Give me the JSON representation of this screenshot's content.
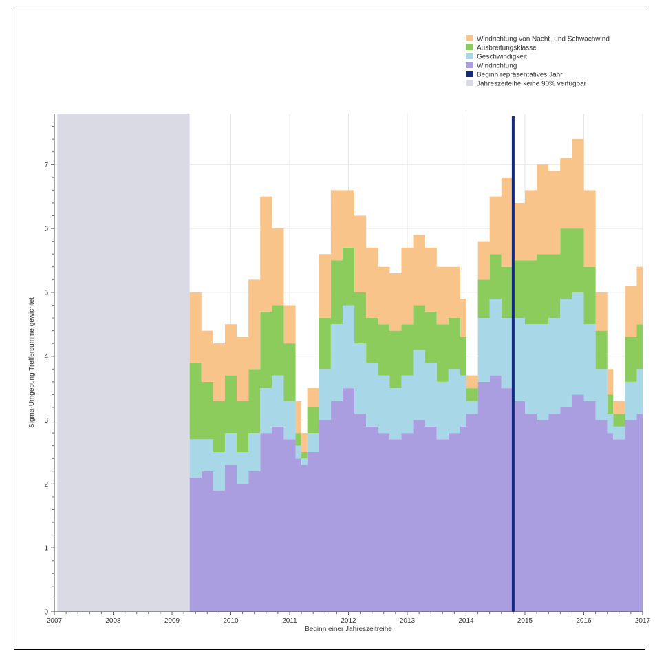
{
  "chart_data": {
    "type": "area",
    "stacked": true,
    "xlabel": "Beginn einer Jahreszeitreihe",
    "ylabel": "Sigma-Umgebung Treffersumme gewichtet",
    "xlim": [
      2007,
      2017
    ],
    "ylim": [
      0,
      7.8
    ],
    "x_ticks": [
      "2007",
      "2008",
      "2009",
      "2010",
      "2011",
      "2012",
      "2013",
      "2014",
      "2015",
      "2016",
      "2017"
    ],
    "y_ticks": [
      "0",
      "1",
      "2",
      "3",
      "4",
      "5",
      "6",
      "7"
    ],
    "grid": true,
    "legend_position": "top-right",
    "x": [
      2009.3,
      2009.5,
      2009.7,
      2009.9,
      2010.1,
      2010.3,
      2010.5,
      2010.7,
      2010.9,
      2011.1,
      2011.2,
      2011.3,
      2011.5,
      2011.7,
      2011.9,
      2012.1,
      2012.3,
      2012.5,
      2012.7,
      2012.9,
      2013.1,
      2013.3,
      2013.5,
      2013.7,
      2013.9,
      2014.0,
      2014.2,
      2014.4,
      2014.6,
      2014.8,
      2015.0,
      2015.2,
      2015.4,
      2015.6,
      2015.8,
      2016.0,
      2016.2,
      2016.4,
      2016.5,
      2016.7,
      2016.9,
      2017.0
    ],
    "series": [
      {
        "name": "Windrichtung",
        "color": "#ab9ee0",
        "values": [
          2.1,
          2.2,
          1.9,
          2.3,
          2.0,
          2.2,
          2.8,
          2.9,
          2.7,
          2.4,
          2.3,
          2.5,
          3.0,
          3.3,
          3.5,
          3.1,
          2.9,
          2.8,
          2.7,
          2.8,
          3.0,
          2.9,
          2.7,
          2.8,
          2.9,
          3.1,
          3.6,
          3.7,
          3.5,
          3.3,
          3.1,
          3.0,
          3.1,
          3.2,
          3.4,
          3.3,
          3.0,
          2.8,
          2.7,
          3.0,
          3.1,
          3.0
        ]
      },
      {
        "name": "Geschwindigkeit",
        "color": "#a8d7e8",
        "values": [
          0.6,
          0.5,
          0.6,
          0.5,
          0.5,
          0.6,
          0.7,
          0.8,
          0.6,
          0.2,
          0.1,
          0.3,
          0.8,
          1.2,
          1.3,
          1.1,
          1.0,
          0.9,
          0.8,
          0.9,
          1.1,
          1.0,
          0.9,
          1.0,
          0.8,
          0.2,
          1.0,
          1.2,
          1.1,
          1.3,
          1.4,
          1.5,
          1.5,
          1.7,
          1.6,
          1.2,
          0.8,
          0.3,
          0.2,
          0.6,
          0.7,
          0.6
        ]
      },
      {
        "name": "Ausbreitungsklasse",
        "color": "#8ccc5c",
        "values": [
          1.2,
          0.9,
          0.8,
          0.9,
          0.8,
          1.0,
          1.2,
          1.1,
          0.9,
          0.2,
          0.1,
          0.4,
          0.8,
          1.0,
          0.9,
          0.8,
          0.7,
          0.8,
          0.9,
          0.8,
          0.7,
          0.8,
          0.9,
          0.8,
          0.6,
          0.2,
          0.6,
          0.7,
          0.8,
          0.9,
          1.0,
          1.1,
          1.0,
          1.1,
          1.0,
          0.9,
          0.6,
          0.3,
          0.2,
          0.7,
          0.7,
          0.6
        ]
      },
      {
        "name": "Windrichtung von Nacht- und Schwachwind",
        "color": "#f8c48a",
        "values": [
          1.1,
          0.8,
          0.9,
          0.8,
          1.0,
          1.4,
          1.8,
          1.2,
          0.6,
          0.5,
          0.3,
          0.3,
          1.0,
          1.1,
          0.9,
          1.2,
          1.1,
          0.9,
          0.9,
          1.2,
          1.1,
          1.0,
          0.9,
          0.8,
          0.6,
          0.2,
          0.6,
          0.9,
          1.4,
          0.9,
          1.1,
          1.4,
          1.3,
          1.1,
          1.4,
          1.2,
          0.6,
          0.4,
          0.2,
          0.8,
          0.9,
          0.7
        ]
      }
    ],
    "representative_year_start": 2014.8,
    "unavailable_range": [
      2007.05,
      2009.3
    ],
    "legend": [
      {
        "label": "Windrichtung von Nacht- und Schwachwind",
        "color": "#f8c48a"
      },
      {
        "label": "Ausbreitungsklasse",
        "color": "#8ccc5c"
      },
      {
        "label": "Geschwindigkeit",
        "color": "#a8d7e8"
      },
      {
        "label": "Windrichtung",
        "color": "#ab9ee0"
      },
      {
        "label": "Beginn repräsentatives Jahr",
        "color": "#122a86"
      },
      {
        "label": "Jahreszeiteihe keine 90% verfügbar",
        "color": "#d9dae3"
      }
    ]
  }
}
